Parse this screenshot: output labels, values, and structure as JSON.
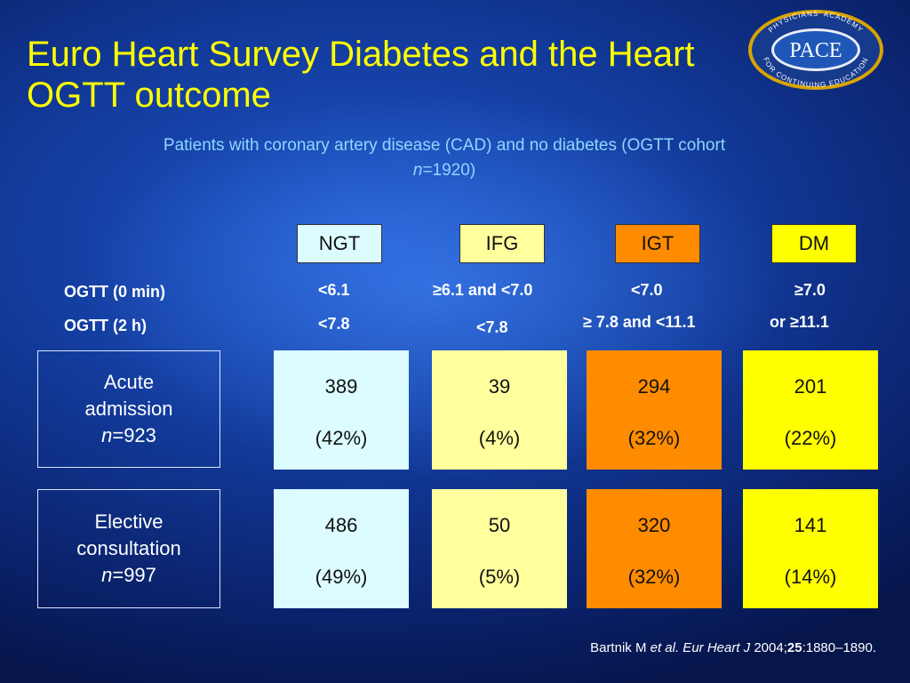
{
  "title": "Euro Heart Survey Diabetes and the Heart OGTT outcome",
  "logo": {
    "top_text": "PHYSICIANS' ACADEMY",
    "center_text": "PACE",
    "bottom_text": "FOR CONTINUING EDUCATION"
  },
  "subtitle": {
    "line1": "Patients with coronary artery disease (CAD) and no diabetes (OGTT cohort",
    "n_label": "n",
    "n_value": "=1920)"
  },
  "columns": [
    {
      "label": "NGT",
      "ogtt_0": "<6.1",
      "ogtt_2h": "<7.8",
      "color": "#dcfcff"
    },
    {
      "label": "IFG",
      "ogtt_0": "≥6.1 and <7.0",
      "ogtt_2h": "<7.8",
      "color": "#ffff9e"
    },
    {
      "label": "IGT",
      "ogtt_0": "<7.0",
      "ogtt_2h": "≥ 7.8 and <11.1",
      "color": "#ff8c00"
    },
    {
      "label": "DM",
      "ogtt_0": "≥7.0",
      "ogtt_2h": "or ≥11.1",
      "color": "#ffff00"
    }
  ],
  "criteria_labels": {
    "row0": "OGTT  (0 min)",
    "row2h": "OGTT  (2 h)"
  },
  "rows": [
    {
      "label_line1": "Acute",
      "label_line2": "admission",
      "n_label": "n",
      "n_value": "=923",
      "cells": [
        {
          "count": "389",
          "pct": "(42%)"
        },
        {
          "count": "39",
          "pct": "(4%)"
        },
        {
          "count": "294",
          "pct": "(32%)"
        },
        {
          "count": "201",
          "pct": "(22%)"
        }
      ]
    },
    {
      "label_line1": "Elective",
      "label_line2": "consultation",
      "n_label": "n",
      "n_value": "=997",
      "cells": [
        {
          "count": "486",
          "pct": "(49%)"
        },
        {
          "count": "50",
          "pct": "(5%)"
        },
        {
          "count": "320",
          "pct": "(32%)"
        },
        {
          "count": "141",
          "pct": "(14%)"
        }
      ]
    }
  ],
  "reference": {
    "author": "Bartnik M ",
    "etal": "et al.",
    "journal": " Eur Heart J",
    "year": " 2004;",
    "volume": "25",
    "pages": ":1880–1890."
  },
  "colors": {
    "title": "#ffff00",
    "subtitle": "#8fd6ff",
    "background": "#123a9a"
  }
}
